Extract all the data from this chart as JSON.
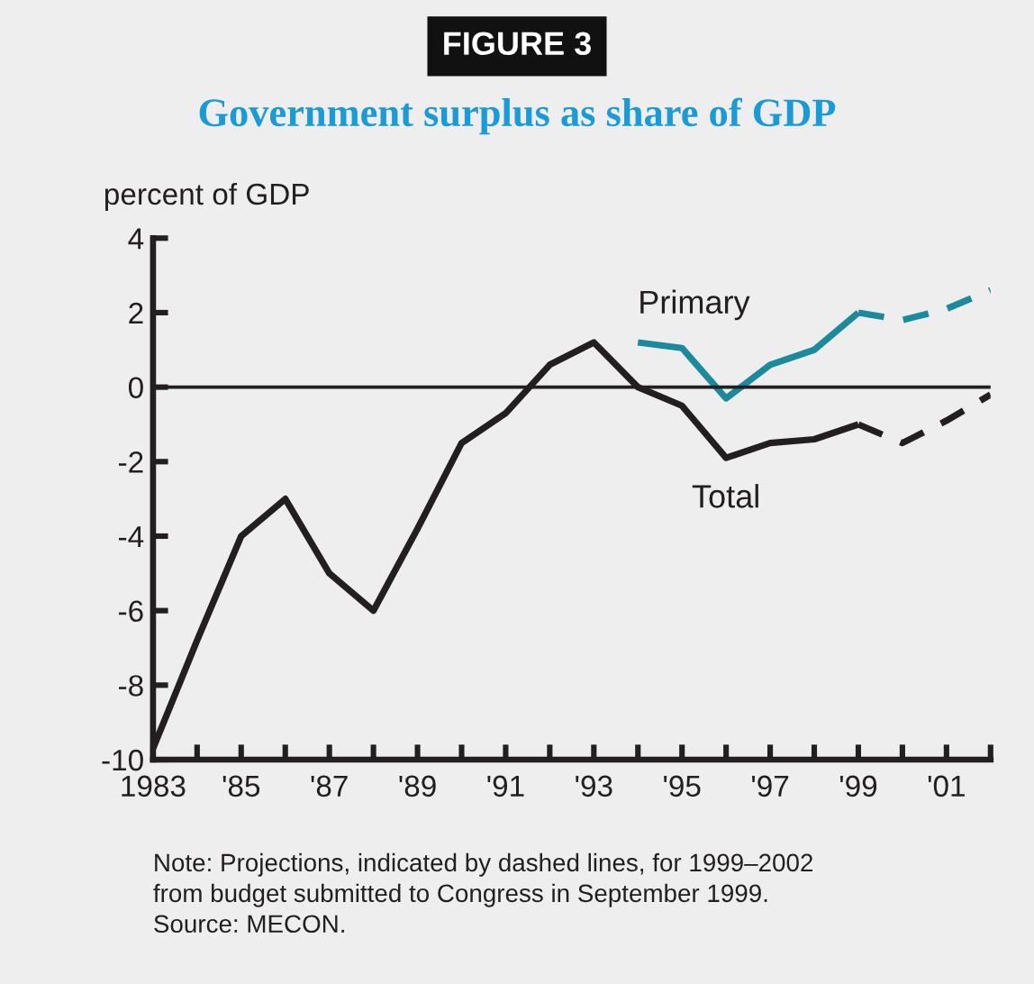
{
  "chart_data": {
    "type": "line",
    "title": "Government surplus as share of GDP",
    "ylabel": "percent of GDP",
    "annotations": [
      "FIGURE 3",
      "Note: Projections, indicated by dashed lines, for 1999–2002\nfrom budget submitted to Congress in September 1999.\nSource: MECON."
    ],
    "series": [
      {
        "name": "Total",
        "color": "#231f20",
        "line_style": "solid",
        "x": [
          1983,
          1984,
          1985,
          1986,
          1987,
          1988,
          1989,
          1990,
          1991,
          1992,
          1993,
          1994,
          1995,
          1996,
          1997,
          1998,
          1999
        ],
        "values": [
          -9.7,
          -6.8,
          -4.0,
          -3.0,
          -5.0,
          -6.0,
          -3.8,
          -1.5,
          -0.7,
          0.6,
          1.2,
          0.0,
          -0.5,
          -1.9,
          -1.5,
          -1.4,
          -1.0
        ]
      },
      {
        "name": "Primary",
        "color": "#1a8a9c",
        "line_style": "solid",
        "x": [
          1994,
          1995,
          1996,
          1997,
          1998,
          1999
        ],
        "values": [
          1.2,
          1.05,
          -0.3,
          0.6,
          1.0,
          2.0
        ]
      },
      {
        "color": "#231f20",
        "line_style": "dashed",
        "x": [
          1999,
          2000,
          2001,
          2002
        ],
        "values": [
          -1.0,
          -1.5,
          -0.9,
          -0.2
        ]
      },
      {
        "color": "#1a8a9c",
        "line_style": "dashed",
        "x": [
          1999,
          2000,
          2001,
          2002
        ],
        "values": [
          2.0,
          1.8,
          2.1,
          2.6
        ]
      }
    ],
    "xlim": [
      1983,
      2002
    ],
    "ylim": [
      -10,
      4
    ],
    "xticks": [
      1983,
      {
        "value": 1984,
        "label": null
      },
      {
        "value": 1985,
        "label": "'85"
      },
      {
        "value": 1986,
        "label": null
      },
      {
        "value": 1987,
        "label": "'87"
      },
      {
        "value": 1988,
        "label": null
      },
      {
        "value": 1989,
        "label": "'89"
      },
      {
        "value": 1990,
        "label": null
      },
      {
        "value": 1991,
        "label": "'91"
      },
      {
        "value": 1992,
        "label": null
      },
      {
        "value": 1993,
        "label": "'93"
      },
      {
        "value": 1994,
        "label": null
      },
      {
        "value": 1995,
        "label": "'95"
      },
      {
        "value": 1996,
        "label": null
      },
      {
        "value": 1997,
        "label": "'97"
      },
      {
        "value": 1998,
        "label": null
      },
      {
        "value": 1999,
        "label": "'99"
      },
      {
        "value": 2000,
        "label": null
      },
      {
        "value": 2001,
        "label": "'01"
      },
      {
        "value": 2002,
        "label": null
      }
    ],
    "yticks": [
      -10,
      -8,
      -6,
      -4,
      -2,
      0,
      2,
      4
    ],
    "ref_lines": [
      {
        "axis": "y",
        "value": 0,
        "color": "#231f20",
        "line_style": "solid"
      }
    ],
    "grid": false,
    "legend": false,
    "marker": "none"
  }
}
